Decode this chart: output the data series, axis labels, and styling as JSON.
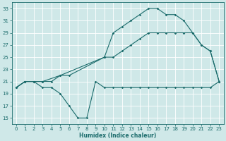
{
  "xlabel": "Humidex (Indice chaleur)",
  "xlim": [
    -0.5,
    23.5
  ],
  "ylim": [
    14,
    34
  ],
  "yticks": [
    15,
    17,
    19,
    21,
    23,
    25,
    27,
    29,
    31,
    33
  ],
  "xticks": [
    0,
    1,
    2,
    3,
    4,
    5,
    6,
    7,
    8,
    9,
    10,
    11,
    12,
    13,
    14,
    15,
    16,
    17,
    18,
    19,
    20,
    21,
    22,
    23
  ],
  "bg_color": "#cfe8e8",
  "grid_color": "#b0d4d4",
  "line_color": "#1a6b6b",
  "line1_x": [
    0,
    1,
    2,
    3,
    4,
    5,
    6,
    7,
    8,
    9,
    10,
    11,
    12,
    13,
    14,
    15,
    16,
    17,
    18,
    19,
    20,
    21,
    22,
    23
  ],
  "line1_y": [
    20,
    21,
    21,
    20,
    20,
    19,
    17,
    15,
    15,
    21,
    20,
    20,
    20,
    20,
    20,
    20,
    20,
    20,
    20,
    20,
    20,
    20,
    20,
    21
  ],
  "line2_x": [
    0,
    1,
    2,
    3,
    4,
    5,
    6,
    10,
    11,
    12,
    13,
    14,
    15,
    16,
    17,
    18,
    19,
    20,
    21,
    22,
    23
  ],
  "line2_y": [
    20,
    21,
    21,
    21,
    21,
    22,
    22,
    25,
    25,
    26,
    27,
    28,
    29,
    29,
    29,
    29,
    29,
    29,
    27,
    26,
    21
  ],
  "line3_x": [
    0,
    1,
    2,
    3,
    5,
    10,
    11,
    12,
    13,
    14,
    15,
    16,
    17,
    18,
    19,
    20,
    21,
    22,
    23
  ],
  "line3_y": [
    20,
    21,
    21,
    21,
    22,
    25,
    29,
    30,
    31,
    32,
    33,
    33,
    32,
    32,
    31,
    29,
    27,
    26,
    21
  ],
  "figsize": [
    3.2,
    2.0
  ],
  "dpi": 100
}
